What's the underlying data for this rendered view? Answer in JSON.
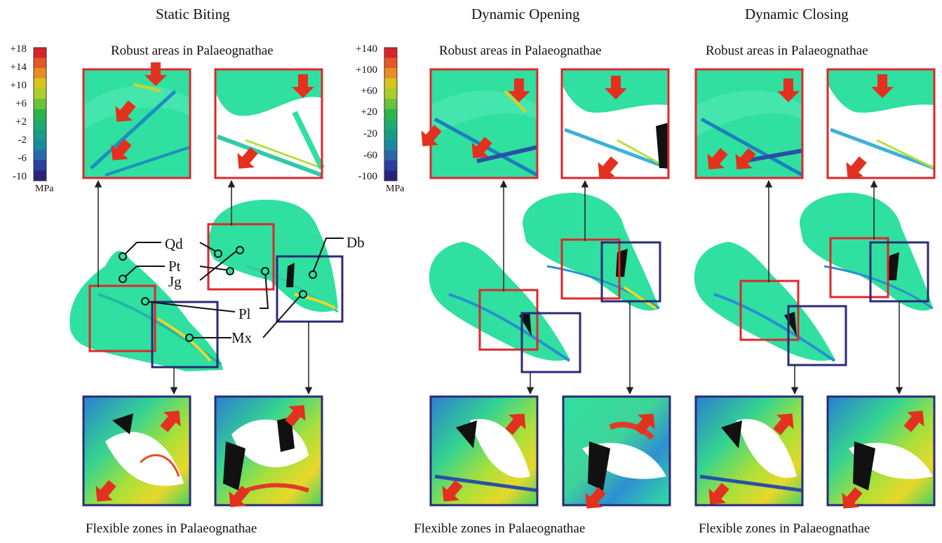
{
  "panels": [
    {
      "title": "Static Biting",
      "robust_caption": "Robust areas in Palaeognathae",
      "flexible_caption": "Flexible zones in Palaeognathae"
    },
    {
      "title": "Dynamic Opening",
      "robust_caption": "Robust areas in Palaeognathae",
      "flexible_caption": "Flexible zones in Palaeognathae"
    },
    {
      "title": "Dynamic Closing",
      "robust_caption": "Robust areas in Palaeognathae",
      "flexible_caption": "Flexible zones in Palaeognathae"
    }
  ],
  "colorbars": [
    {
      "labels": [
        "+18",
        "+14",
        "+10",
        "+6",
        "+2",
        "-2",
        "-6",
        "-10"
      ],
      "unit": "MPa"
    },
    {
      "labels": [
        "+140",
        "+100",
        "+60",
        "+20",
        "-20",
        "-60",
        "-100"
      ],
      "unit": "MPa"
    }
  ],
  "colorbar_colors": [
    "#d8232a",
    "#e3572a",
    "#e88e24",
    "#d7c51e",
    "#a8cf2e",
    "#6cc23a",
    "#2db54b",
    "#1faa6e",
    "#1a9b86",
    "#1a8aa0",
    "#2a68a8",
    "#2a3f9c",
    "#28237a"
  ],
  "anatomy_labels": {
    "qd": "Qd",
    "pt": "Pt",
    "jg": "Jg",
    "pl": "Pl",
    "mx": "Mx",
    "db": "Db"
  },
  "colors": {
    "robust_box": "#e0262a",
    "flexible_box": "#2b2a78",
    "arrow": "#e3301f",
    "bone": "#2fe0a0"
  }
}
